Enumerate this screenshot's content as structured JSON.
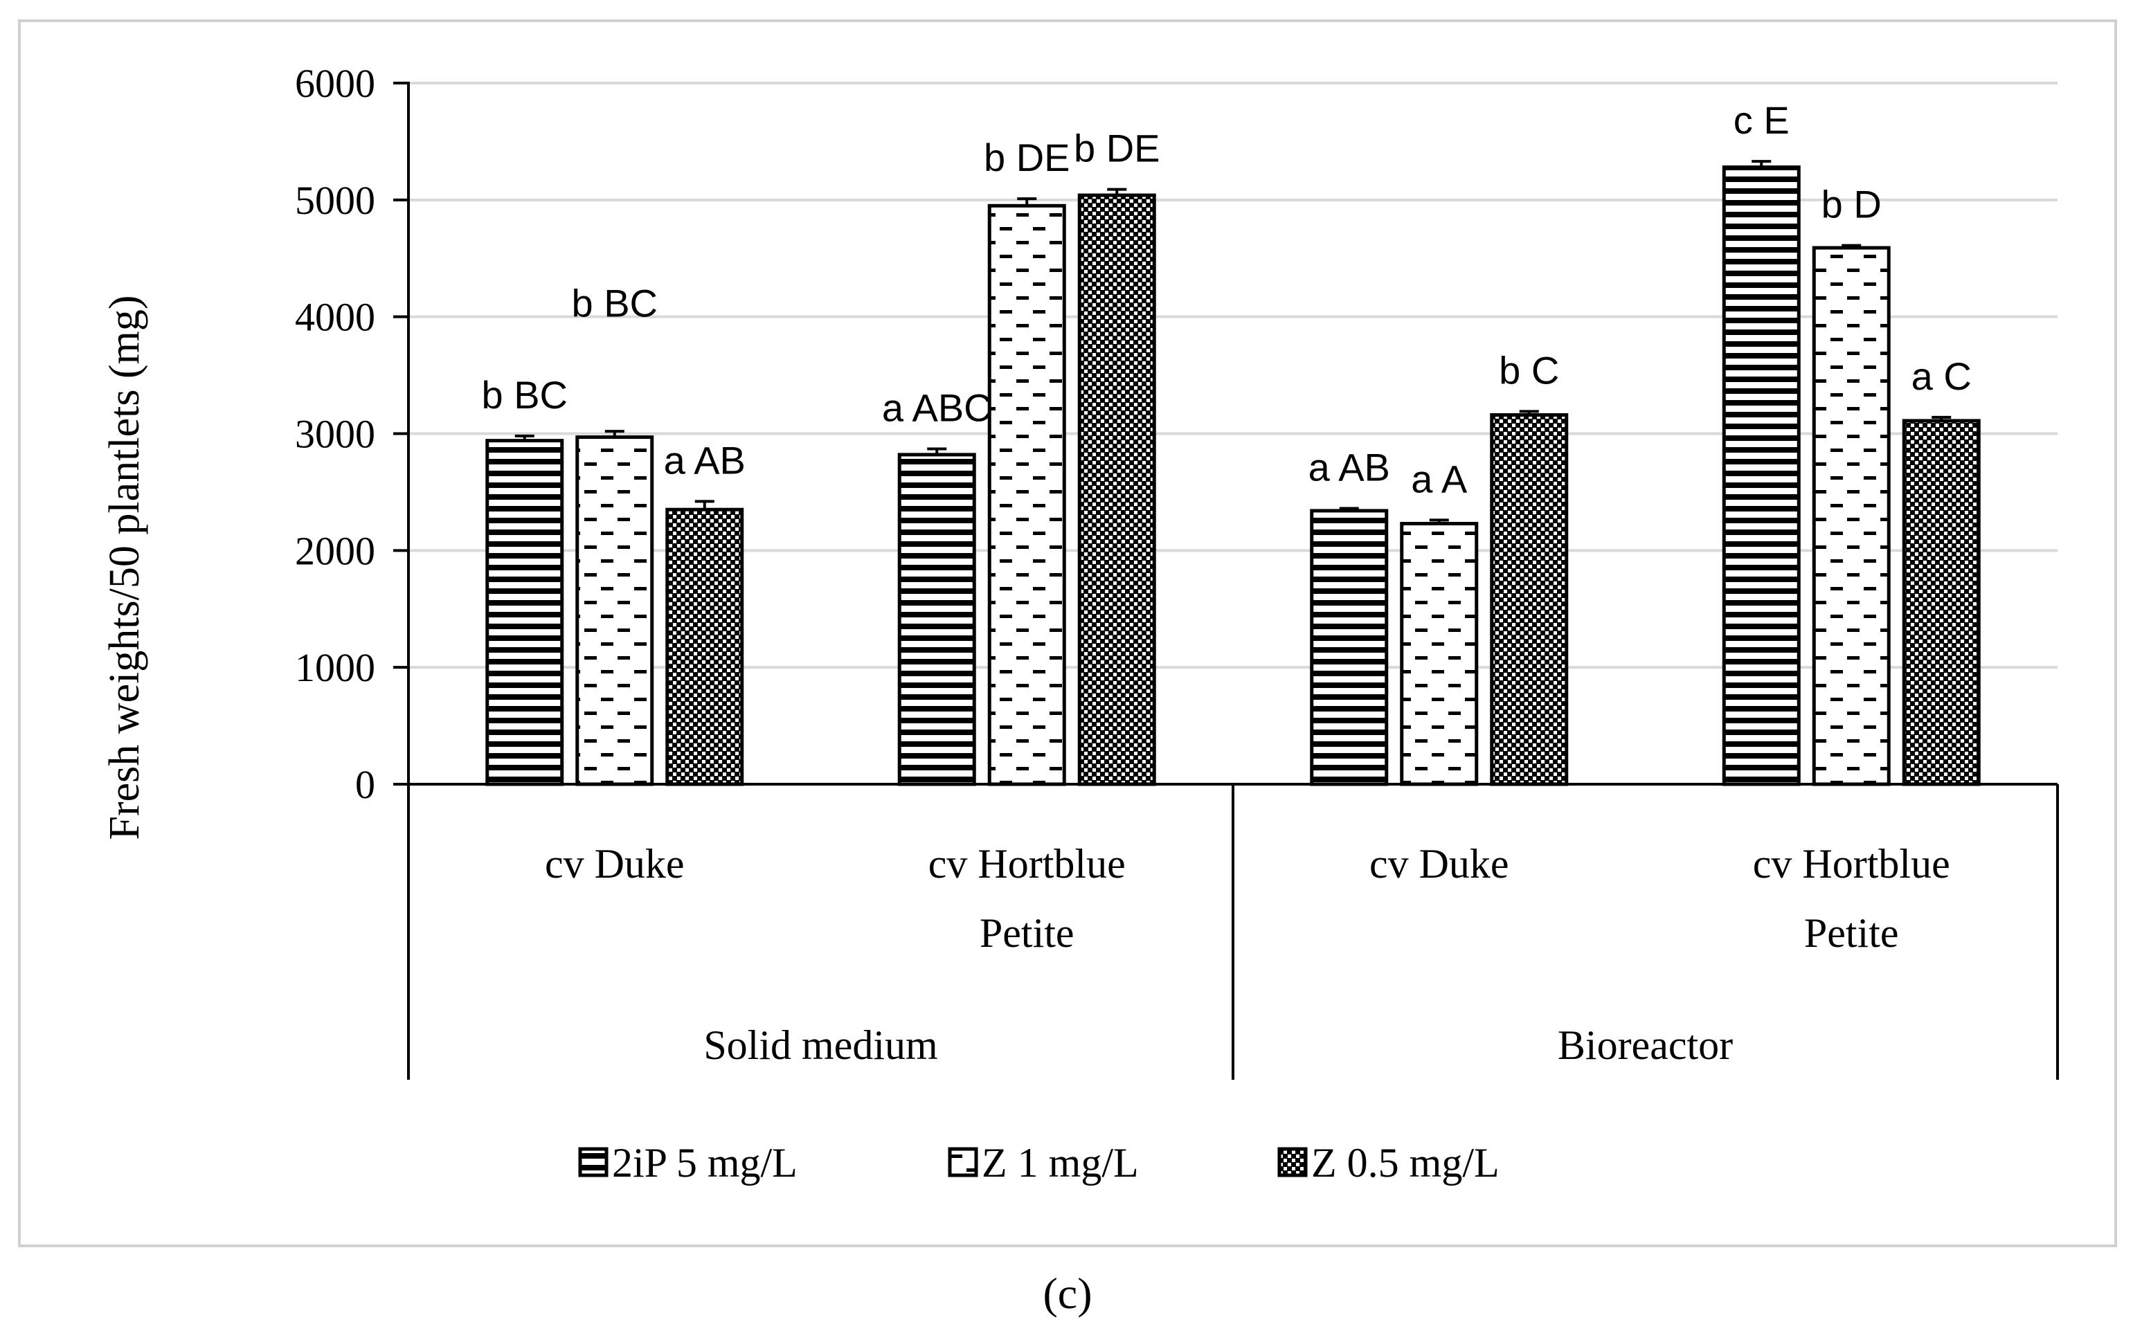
{
  "chart_data": {
    "type": "bar",
    "ylabel": "Fresh weights/50 plantlets (mg)",
    "ylim": [
      0,
      6000
    ],
    "yticks": [
      0,
      1000,
      2000,
      3000,
      4000,
      5000,
      6000
    ],
    "grid": true,
    "groups": [
      {
        "name": "Solid medium",
        "categories": [
          "cv Duke",
          "cv Hortblue Petite"
        ]
      },
      {
        "name": "Bioreactor",
        "categories": [
          "cv Duke",
          "cv Hortblue Petite"
        ]
      }
    ],
    "category_lines": [
      [
        "cv Duke"
      ],
      [
        "cv Hortblue",
        "Petite"
      ],
      [
        "cv Duke"
      ],
      [
        "cv Hortblue",
        "Petite"
      ]
    ],
    "series": [
      {
        "name": "2iP 5 mg/L",
        "pattern": "horizontal-stripes",
        "values": [
          2940,
          2820,
          2340,
          5280
        ],
        "errors": [
          40,
          50,
          20,
          50
        ],
        "labels": [
          "b BC",
          "a ABC",
          "a AB",
          "c E"
        ]
      },
      {
        "name": "Z 1 mg/L",
        "pattern": "dashes",
        "values": [
          2970,
          4950,
          2230,
          4590
        ],
        "errors": [
          50,
          60,
          30,
          20
        ],
        "labels": [
          "b BC",
          "b DE",
          "a A",
          "b D"
        ]
      },
      {
        "name": "Z 0.5 mg/L",
        "pattern": "checker",
        "values": [
          2350,
          5040,
          3160,
          3110
        ],
        "errors": [
          70,
          50,
          30,
          30
        ],
        "labels": [
          "a AB",
          "b DE",
          "b C",
          "a C"
        ]
      }
    ]
  },
  "caption": "(c)"
}
